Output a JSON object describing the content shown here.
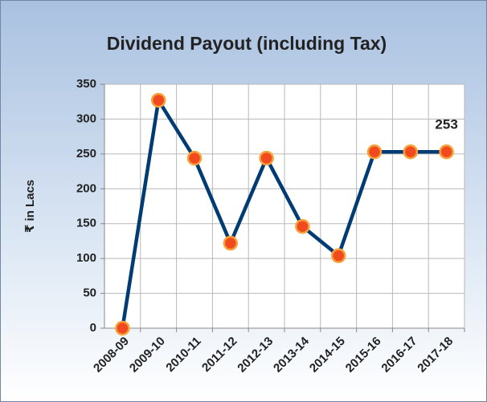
{
  "chart_data": {
    "type": "line",
    "title": "Dividend Payout (including Tax)",
    "y_label": "₹ in Lacs",
    "categories": [
      "2008-09",
      "2009-10",
      "2010-11",
      "2011-12",
      "2012-13",
      "2013-14",
      "2014-15",
      "2015-16",
      "2016-17",
      "2017-18"
    ],
    "series": [
      {
        "name": "Dividend Payout",
        "color": "#003b73",
        "marker_color": "#f04a1e",
        "values": [
          0,
          327,
          244,
          122,
          244,
          146,
          104,
          253,
          253,
          253
        ]
      }
    ],
    "ylim": [
      0,
      350
    ],
    "yticks": [
      0,
      50,
      100,
      150,
      200,
      250,
      300,
      350
    ],
    "grid": true
  }
}
